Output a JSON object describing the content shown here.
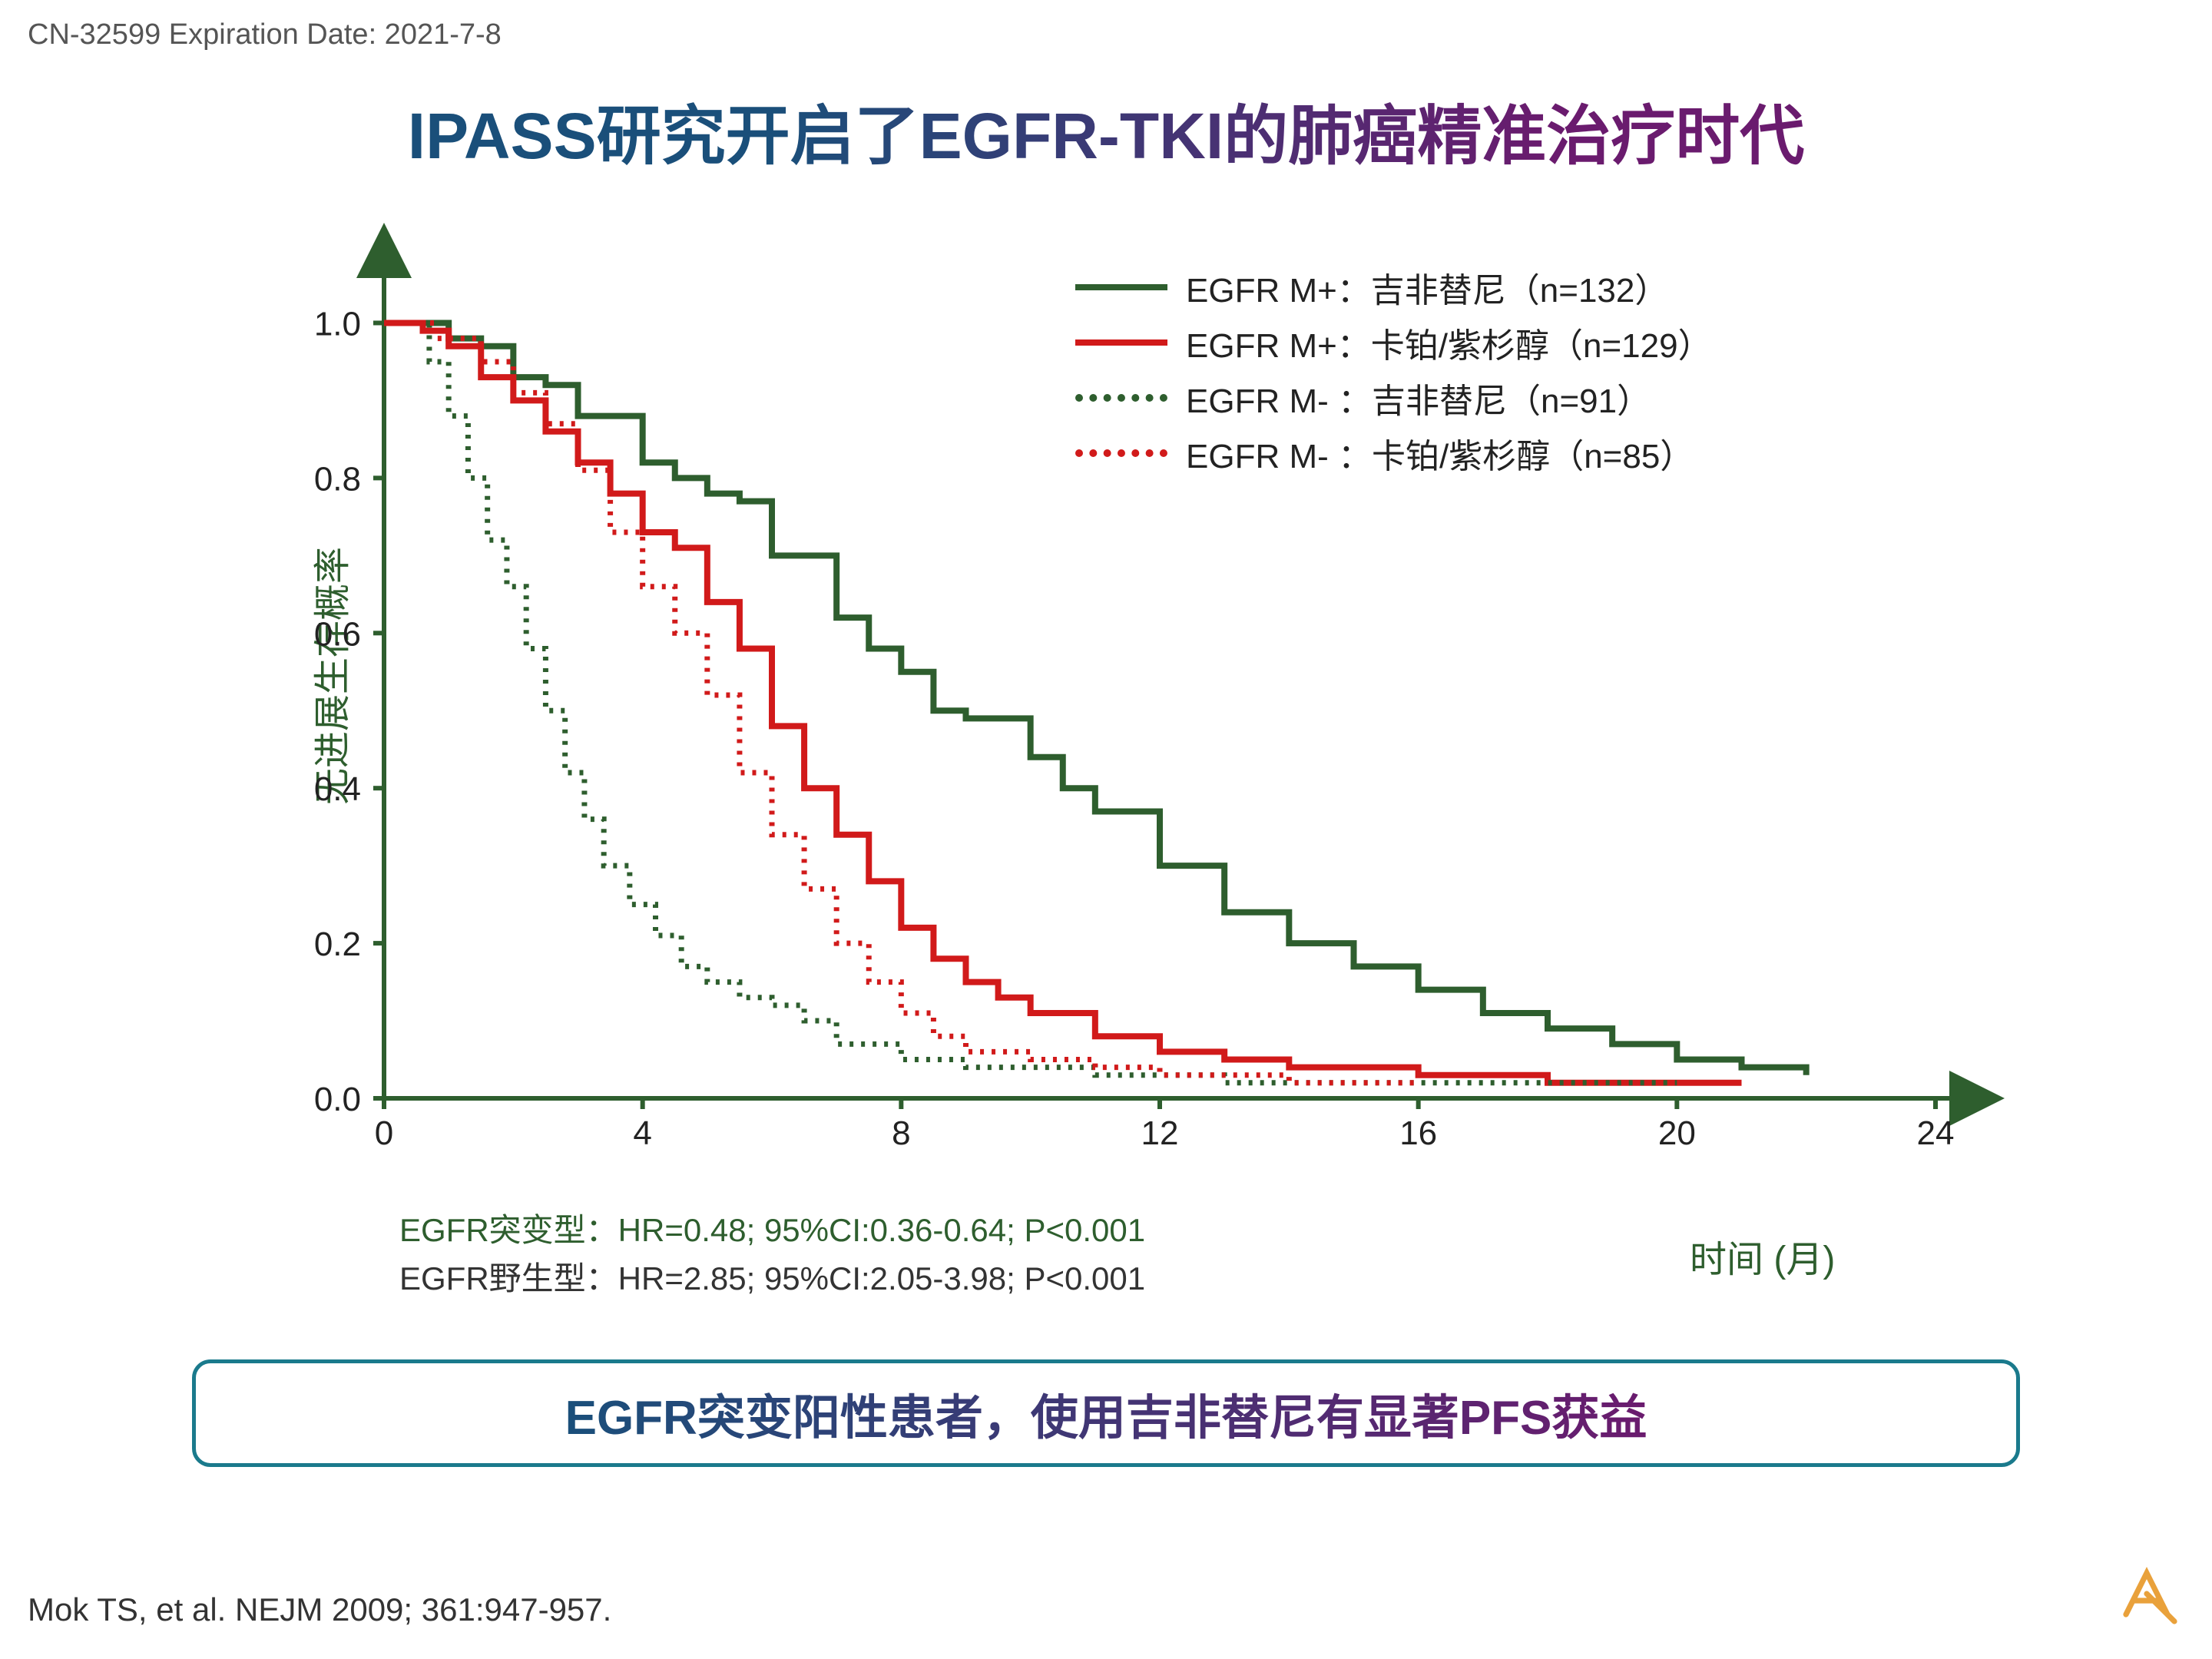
{
  "header_note": "CN-32599 Expiration Date: 2021-7-8",
  "title": "IPASS研究开启了EGFR-TKI的肺癌精准治疗时代",
  "chart": {
    "type": "kaplan-meier",
    "ylabel": "无进展生存概率",
    "xlabel": "时间 (月)",
    "xlim": [
      0,
      24
    ],
    "ylim": [
      0,
      1.05
    ],
    "xticks": [
      0,
      4,
      8,
      12,
      16,
      20,
      24
    ],
    "yticks": [
      0.0,
      0.2,
      0.4,
      0.6,
      0.8,
      1.0
    ],
    "axis_color": "#2e5e2e",
    "series": [
      {
        "id": "mpos_gef",
        "label": "EGFR M+：吉非替尼（n=132）",
        "color": "#2e5e2e",
        "dash": "none",
        "width": 8,
        "points": [
          [
            0,
            1.0
          ],
          [
            1,
            0.98
          ],
          [
            1.5,
            0.97
          ],
          [
            2,
            0.93
          ],
          [
            2.5,
            0.92
          ],
          [
            3,
            0.88
          ],
          [
            4,
            0.82
          ],
          [
            4.5,
            0.8
          ],
          [
            5,
            0.78
          ],
          [
            5.5,
            0.77
          ],
          [
            6,
            0.7
          ],
          [
            7,
            0.62
          ],
          [
            7.5,
            0.58
          ],
          [
            8,
            0.55
          ],
          [
            8.5,
            0.5
          ],
          [
            9,
            0.49
          ],
          [
            10,
            0.44
          ],
          [
            10.5,
            0.4
          ],
          [
            11,
            0.37
          ],
          [
            12,
            0.3
          ],
          [
            13,
            0.24
          ],
          [
            14,
            0.2
          ],
          [
            15,
            0.17
          ],
          [
            16,
            0.14
          ],
          [
            17,
            0.11
          ],
          [
            18,
            0.09
          ],
          [
            19,
            0.07
          ],
          [
            20,
            0.05
          ],
          [
            21,
            0.04
          ],
          [
            22,
            0.03
          ]
        ]
      },
      {
        "id": "mpos_ctx",
        "label": "EGFR M+：卡铂/紫杉醇（n=129）",
        "color": "#d11a1a",
        "dash": "none",
        "width": 8,
        "points": [
          [
            0,
            1.0
          ],
          [
            0.6,
            0.99
          ],
          [
            1,
            0.97
          ],
          [
            1.5,
            0.93
          ],
          [
            2,
            0.9
          ],
          [
            2.5,
            0.86
          ],
          [
            3,
            0.82
          ],
          [
            3.5,
            0.78
          ],
          [
            4,
            0.73
          ],
          [
            4.5,
            0.71
          ],
          [
            5,
            0.64
          ],
          [
            5.5,
            0.58
          ],
          [
            6,
            0.48
          ],
          [
            6.5,
            0.4
          ],
          [
            7,
            0.34
          ],
          [
            7.5,
            0.28
          ],
          [
            8,
            0.22
          ],
          [
            8.5,
            0.18
          ],
          [
            9,
            0.15
          ],
          [
            9.5,
            0.13
          ],
          [
            10,
            0.11
          ],
          [
            11,
            0.08
          ],
          [
            12,
            0.06
          ],
          [
            13,
            0.05
          ],
          [
            14,
            0.04
          ],
          [
            15,
            0.04
          ],
          [
            16,
            0.03
          ],
          [
            17,
            0.03
          ],
          [
            18,
            0.02
          ],
          [
            19,
            0.02
          ],
          [
            20,
            0.02
          ],
          [
            21,
            0.02
          ]
        ]
      },
      {
        "id": "mneg_gef",
        "label": "EGFR M- ：吉非替尼（n=91）",
        "color": "#2e5e2e",
        "dash": "5,10",
        "width": 7,
        "points": [
          [
            0,
            1.0
          ],
          [
            0.7,
            0.95
          ],
          [
            1,
            0.88
          ],
          [
            1.3,
            0.8
          ],
          [
            1.6,
            0.72
          ],
          [
            1.9,
            0.66
          ],
          [
            2.2,
            0.58
          ],
          [
            2.5,
            0.5
          ],
          [
            2.8,
            0.42
          ],
          [
            3.1,
            0.36
          ],
          [
            3.4,
            0.3
          ],
          [
            3.8,
            0.25
          ],
          [
            4.2,
            0.21
          ],
          [
            4.6,
            0.17
          ],
          [
            5,
            0.15
          ],
          [
            5.5,
            0.13
          ],
          [
            6,
            0.12
          ],
          [
            6.5,
            0.1
          ],
          [
            7,
            0.07
          ],
          [
            8,
            0.05
          ],
          [
            9,
            0.04
          ],
          [
            10,
            0.04
          ],
          [
            11,
            0.03
          ],
          [
            12,
            0.03
          ],
          [
            13,
            0.02
          ],
          [
            14,
            0.02
          ],
          [
            15,
            0.02
          ],
          [
            16,
            0.02
          ],
          [
            17,
            0.02
          ],
          [
            18,
            0.02
          ],
          [
            19,
            0.02
          ],
          [
            20,
            0.02
          ]
        ]
      },
      {
        "id": "mneg_ctx",
        "label": "EGFR M- ：卡铂/紫杉醇（n=85）",
        "color": "#d11a1a",
        "dash": "5,10",
        "width": 7,
        "points": [
          [
            0,
            1.0
          ],
          [
            0.8,
            0.98
          ],
          [
            1.5,
            0.95
          ],
          [
            2,
            0.91
          ],
          [
            2.5,
            0.87
          ],
          [
            3,
            0.81
          ],
          [
            3.5,
            0.73
          ],
          [
            4,
            0.66
          ],
          [
            4.5,
            0.6
          ],
          [
            5,
            0.52
          ],
          [
            5.5,
            0.42
          ],
          [
            6,
            0.34
          ],
          [
            6.5,
            0.27
          ],
          [
            7,
            0.2
          ],
          [
            7.5,
            0.15
          ],
          [
            8,
            0.11
          ],
          [
            8.5,
            0.08
          ],
          [
            9,
            0.06
          ],
          [
            10,
            0.05
          ],
          [
            11,
            0.04
          ],
          [
            12,
            0.03
          ],
          [
            13,
            0.03
          ],
          [
            14,
            0.02
          ],
          [
            15,
            0.02
          ],
          [
            16,
            0.02
          ]
        ]
      }
    ]
  },
  "stats": {
    "mutant": "EGFR突变型：HR=0.48; 95%CI:0.36-0.64; P<0.001",
    "wild": "EGFR野生型：HR=2.85; 95%CI:2.05-3.98; P<0.001"
  },
  "conclusion": "EGFR突变阳性患者，使用吉非替尼有显著PFS获益",
  "citation": "Mok TS, et al. NEJM 2009; 361:947-957.",
  "colors": {
    "green": "#2e5e2e",
    "red": "#d11a1a",
    "teal": "#1a7a8c",
    "purple": "#6a1b6e",
    "blue": "#1a4f7a",
    "logo": "#e9a13b"
  }
}
